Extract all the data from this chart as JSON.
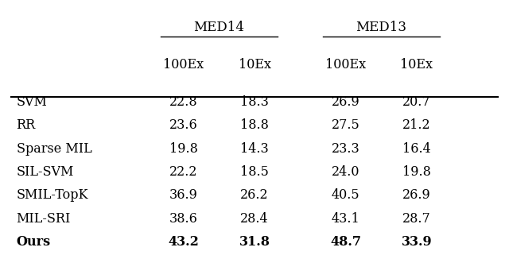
{
  "methods": [
    "SVM",
    "RR",
    "Sparse MIL",
    "SIL-SVM",
    "SMIL-TopK",
    "MIL-SRI",
    "Ours"
  ],
  "med14_100ex": [
    "22.8",
    "23.6",
    "19.8",
    "22.2",
    "36.9",
    "38.6",
    "43.2"
  ],
  "med14_10ex": [
    "18.3",
    "18.8",
    "14.3",
    "18.5",
    "26.2",
    "28.4",
    "31.8"
  ],
  "med13_100ex": [
    "26.9",
    "27.5",
    "23.3",
    "24.0",
    "40.5",
    "43.1",
    "48.7"
  ],
  "med13_10ex": [
    "20.7",
    "21.2",
    "16.4",
    "19.8",
    "26.9",
    "28.7",
    "33.9"
  ],
  "bold_row": 6,
  "group1_label": "MED14",
  "group2_label": "MED13",
  "col1_label": "100Ex",
  "col2_label": "10Ex",
  "col3_label": "100Ex",
  "col4_label": "10Ex",
  "bg_color": "#ffffff",
  "text_color": "#000000",
  "font_size": 11.5,
  "header_font_size": 12
}
